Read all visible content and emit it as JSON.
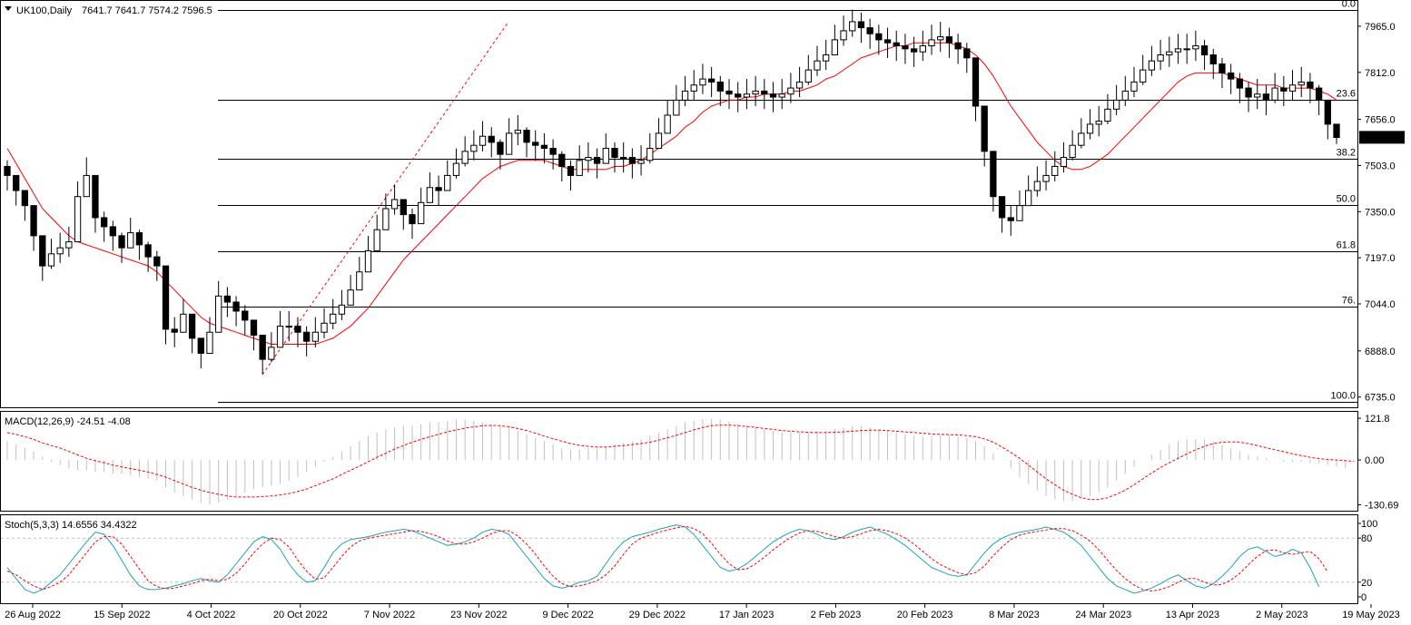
{
  "header": {
    "symbol": "UK100,Daily",
    "ohlc": "7641.7 7641.7 7574.2 7596.5"
  },
  "chart_data": {
    "type": "candlestick",
    "price_axis": {
      "ticks": [
        "7965.0",
        "7812.0",
        "7656.0",
        "7503.0",
        "7350.0",
        "7197.0",
        "7044.0",
        "6888.0",
        "6735.0"
      ],
      "last_price_label": "7596.5",
      "last_price": 7596.5,
      "range": [
        6710,
        8040
      ]
    },
    "date_axis": [
      "26 Aug 2022",
      "15 Sep 2022",
      "4 Oct 2022",
      "20 Oct 2022",
      "7 Nov 2022",
      "23 Nov 2022",
      "9 Dec 2022",
      "29 Dec 2022",
      "17 Jan 2023",
      "2 Feb 2023",
      "20 Feb 2023",
      "8 Mar 2023",
      "24 Mar 2023",
      "13 Apr 2023",
      "2 May 2023",
      "19 May 2023"
    ],
    "fibonacci": {
      "labels": [
        "0.0",
        "23.6",
        "38.2",
        "50.0",
        "61.8",
        "76.",
        "100.0"
      ],
      "levels": [
        8020,
        7720,
        7525,
        7372,
        7220,
        7035,
        6720
      ]
    },
    "ma_color": "#ff0000",
    "closes": [
      7470,
      7420,
      7370,
      7270,
      7170,
      7210,
      7230,
      7250,
      7400,
      7470,
      7330,
      7300,
      7270,
      7230,
      7280,
      7240,
      7200,
      7170,
      6960,
      6950,
      7010,
      6930,
      6880,
      6950,
      7070,
      7050,
      7020,
      6990,
      6940,
      6860,
      6900,
      6970,
      6970,
      6950,
      6920,
      6950,
      6980,
      7010,
      7040,
      7090,
      7150,
      7220,
      7290,
      7360,
      7390,
      7340,
      7310,
      7380,
      7430,
      7420,
      7470,
      7510,
      7550,
      7570,
      7600,
      7580,
      7540,
      7610,
      7620,
      7580,
      7570,
      7560,
      7540,
      7500,
      7470,
      7520,
      7530,
      7510,
      7560,
      7530,
      7530,
      7510,
      7520,
      7560,
      7610,
      7670,
      7720,
      7750,
      7770,
      7790,
      7780,
      7750,
      7740,
      7730,
      7740,
      7750,
      7740,
      7730,
      7740,
      7760,
      7780,
      7820,
      7850,
      7870,
      7920,
      7950,
      7980,
      7960,
      7940,
      7920,
      7910,
      7900,
      7890,
      7880,
      7900,
      7920,
      7930,
      7910,
      7890,
      7860,
      7700,
      7550,
      7400,
      7330,
      7320,
      7370,
      7420,
      7450,
      7470,
      7500,
      7530,
      7570,
      7610,
      7640,
      7650,
      7690,
      7720,
      7750,
      7780,
      7820,
      7850,
      7870,
      7880,
      7890,
      7890,
      7900,
      7870,
      7840,
      7810,
      7790,
      7760,
      7730,
      7740,
      7720,
      7760,
      7750,
      7770,
      7780,
      7760,
      7720,
      7640,
      7596
    ],
    "highs": [
      7520,
      7470,
      7420,
      7320,
      7220,
      7260,
      7280,
      7300,
      7450,
      7530,
      7380,
      7350,
      7320,
      7280,
      7330,
      7290,
      7250,
      7220,
      7010,
      7000,
      7060,
      6980,
      6930,
      7000,
      7120,
      7100,
      7070,
      7040,
      6990,
      6910,
      6950,
      7020,
      7020,
      7000,
      6970,
      7000,
      7030,
      7060,
      7090,
      7140,
      7200,
      7270,
      7340,
      7410,
      7440,
      7390,
      7360,
      7430,
      7480,
      7470,
      7520,
      7560,
      7600,
      7620,
      7650,
      7630,
      7590,
      7660,
      7670,
      7630,
      7620,
      7610,
      7590,
      7550,
      7520,
      7570,
      7580,
      7560,
      7610,
      7580,
      7580,
      7560,
      7570,
      7610,
      7660,
      7720,
      7770,
      7800,
      7820,
      7840,
      7830,
      7800,
      7790,
      7780,
      7790,
      7800,
      7790,
      7780,
      7790,
      7810,
      7830,
      7870,
      7900,
      7920,
      7970,
      8000,
      8020,
      8010,
      7990,
      7970,
      7960,
      7950,
      7940,
      7930,
      7950,
      7970,
      7980,
      7960,
      7940,
      7910,
      7750,
      7600,
      7450,
      7380,
      7370,
      7420,
      7470,
      7500,
      7520,
      7550,
      7580,
      7620,
      7660,
      7690,
      7700,
      7740,
      7770,
      7800,
      7830,
      7870,
      7900,
      7920,
      7930,
      7940,
      7940,
      7950,
      7920,
      7890,
      7860,
      7840,
      7810,
      7780,
      7790,
      7770,
      7810,
      7800,
      7820,
      7830,
      7810,
      7770,
      7690,
      7641
    ],
    "lows": [
      7420,
      7370,
      7320,
      7220,
      7120,
      7160,
      7180,
      7200,
      7350,
      7420,
      7280,
      7250,
      7220,
      7180,
      7230,
      7190,
      7150,
      7120,
      6910,
      6900,
      6960,
      6880,
      6830,
      6900,
      7020,
      7000,
      6970,
      6940,
      6890,
      6810,
      6850,
      6920,
      6920,
      6900,
      6870,
      6900,
      6930,
      6960,
      6990,
      7040,
      7100,
      7170,
      7240,
      7310,
      7340,
      7290,
      7260,
      7330,
      7380,
      7370,
      7420,
      7460,
      7500,
      7520,
      7550,
      7530,
      7490,
      7560,
      7570,
      7530,
      7520,
      7510,
      7490,
      7450,
      7420,
      7470,
      7480,
      7460,
      7510,
      7480,
      7480,
      7460,
      7470,
      7510,
      7560,
      7620,
      7670,
      7700,
      7720,
      7740,
      7730,
      7700,
      7690,
      7680,
      7690,
      7700,
      7690,
      7680,
      7690,
      7710,
      7730,
      7770,
      7800,
      7820,
      7870,
      7900,
      7930,
      7910,
      7890,
      7870,
      7860,
      7850,
      7840,
      7830,
      7850,
      7870,
      7880,
      7860,
      7840,
      7810,
      7650,
      7500,
      7350,
      7280,
      7270,
      7320,
      7370,
      7400,
      7420,
      7450,
      7480,
      7520,
      7560,
      7590,
      7600,
      7640,
      7670,
      7700,
      7730,
      7770,
      7800,
      7820,
      7830,
      7840,
      7840,
      7850,
      7820,
      7790,
      7760,
      7740,
      7710,
      7680,
      7690,
      7670,
      7710,
      7700,
      7720,
      7730,
      7710,
      7670,
      7590,
      7574
    ],
    "ma": [
      7560,
      7510,
      7460,
      7410,
      7360,
      7330,
      7300,
      7270,
      7250,
      7240,
      7230,
      7220,
      7210,
      7200,
      7190,
      7180,
      7170,
      7150,
      7120,
      7090,
      7060,
      7030,
      7000,
      6980,
      6970,
      6960,
      6950,
      6940,
      6930,
      6920,
      6910,
      6910,
      6910,
      6910,
      6910,
      6910,
      6920,
      6930,
      6950,
      6970,
      7000,
      7030,
      7070,
      7110,
      7150,
      7190,
      7220,
      7250,
      7280,
      7310,
      7340,
      7370,
      7400,
      7430,
      7460,
      7480,
      7500,
      7510,
      7520,
      7520,
      7520,
      7520,
      7510,
      7500,
      7490,
      7490,
      7490,
      7490,
      7490,
      7500,
      7500,
      7510,
      7520,
      7540,
      7560,
      7580,
      7600,
      7630,
      7650,
      7680,
      7700,
      7710,
      7720,
      7720,
      7730,
      7730,
      7740,
      7740,
      7740,
      7750,
      7750,
      7760,
      7770,
      7790,
      7800,
      7820,
      7840,
      7860,
      7870,
      7880,
      7890,
      7900,
      7900,
      7910,
      7910,
      7910,
      7910,
      7910,
      7900,
      7890,
      7870,
      7840,
      7800,
      7750,
      7700,
      7660,
      7620,
      7580,
      7550,
      7520,
      7500,
      7490,
      7490,
      7500,
      7520,
      7540,
      7570,
      7600,
      7630,
      7660,
      7690,
      7720,
      7750,
      7780,
      7800,
      7810,
      7810,
      7810,
      7810,
      7800,
      7790,
      7780,
      7770,
      7770,
      7770,
      7760,
      7760,
      7760,
      7760,
      7750,
      7740,
      7720
    ],
    "macd": {
      "label": "MACD(12,26,9) -24.51 -4.08",
      "ticks": [
        "121.8",
        "0.00",
        "-130.69"
      ],
      "range": [
        -140,
        130
      ],
      "hist": [
        55,
        45,
        35,
        25,
        10,
        -5,
        -15,
        -25,
        -30,
        -30,
        -35,
        -35,
        -40,
        -40,
        -45,
        -50,
        -55,
        -60,
        -80,
        -95,
        -105,
        -115,
        -125,
        -130,
        -125,
        -115,
        -105,
        -95,
        -85,
        -80,
        -75,
        -70,
        -60,
        -50,
        -35,
        -20,
        -5,
        10,
        25,
        40,
        55,
        70,
        80,
        90,
        95,
        100,
        100,
        105,
        110,
        110,
        115,
        118,
        118,
        115,
        110,
        105,
        100,
        95,
        85,
        75,
        65,
        55,
        45,
        35,
        30,
        30,
        35,
        35,
        40,
        45,
        50,
        55,
        60,
        70,
        80,
        90,
        100,
        110,
        115,
        120,
        121,
        118,
        112,
        105,
        100,
        95,
        90,
        85,
        80,
        80,
        80,
        80,
        85,
        85,
        90,
        95,
        100,
        100,
        95,
        90,
        85,
        80,
        75,
        70,
        68,
        70,
        72,
        72,
        70,
        65,
        55,
        40,
        20,
        0,
        -25,
        -50,
        -70,
        -90,
        -105,
        -115,
        -120,
        -120,
        -115,
        -105,
        -95,
        -80,
        -60,
        -40,
        -20,
        0,
        15,
        30,
        45,
        55,
        60,
        62,
        60,
        55,
        45,
        35,
        25,
        15,
        10,
        5,
        0,
        -5,
        -5,
        -5,
        -8,
        -10,
        -15,
        -20,
        -24
      ],
      "signal": [
        80,
        75,
        68,
        60,
        50,
        42,
        35,
        25,
        15,
        5,
        -2,
        -8,
        -15,
        -20,
        -25,
        -30,
        -35,
        -42,
        -50,
        -60,
        -70,
        -80,
        -88,
        -95,
        -100,
        -105,
        -108,
        -108,
        -108,
        -107,
        -105,
        -102,
        -98,
        -92,
        -85,
        -75,
        -65,
        -55,
        -42,
        -30,
        -18,
        -5,
        8,
        20,
        32,
        42,
        52,
        60,
        68,
        75,
        82,
        88,
        93,
        97,
        100,
        101,
        100,
        97,
        92,
        86,
        78,
        70,
        62,
        55,
        48,
        43,
        40,
        38,
        38,
        40,
        42,
        45,
        48,
        52,
        58,
        65,
        72,
        80,
        88,
        95,
        100,
        102,
        102,
        100,
        98,
        95,
        92,
        89,
        86,
        84,
        82,
        81,
        80,
        80,
        81,
        82,
        84,
        86,
        87,
        87,
        86,
        84,
        82,
        80,
        78,
        76,
        75,
        74,
        73,
        71,
        68,
        62,
        52,
        38,
        22,
        5,
        -15,
        -35,
        -55,
        -72,
        -88,
        -100,
        -110,
        -115,
        -115,
        -110,
        -100,
        -88,
        -72,
        -55,
        -38,
        -22,
        -8,
        5,
        18,
        30,
        40,
        48,
        52,
        53,
        52,
        48,
        42,
        36,
        30,
        24,
        18,
        13,
        8,
        4,
        2,
        0,
        -2,
        -4
      ],
      "signal_color": "#ff0000",
      "hist_color": "#c0c0c0"
    },
    "stoch": {
      "label": "Stoch(5,3,3) 14.6556 34.4322",
      "ticks": [
        "100",
        "80",
        "20",
        "0"
      ],
      "levels": [
        80,
        20
      ],
      "k": [
        40,
        25,
        10,
        5,
        10,
        20,
        30,
        45,
        60,
        75,
        88,
        85,
        70,
        50,
        30,
        15,
        10,
        10,
        12,
        15,
        18,
        22,
        25,
        22,
        20,
        30,
        45,
        60,
        75,
        82,
        78,
        65,
        45,
        30,
        20,
        22,
        40,
        60,
        72,
        78,
        80,
        82,
        85,
        88,
        90,
        92,
        90,
        85,
        80,
        75,
        70,
        72,
        75,
        80,
        88,
        92,
        90,
        85,
        70,
        55,
        40,
        25,
        15,
        12,
        15,
        20,
        22,
        28,
        45,
        62,
        75,
        82,
        85,
        88,
        92,
        95,
        98,
        95,
        85,
        70,
        55,
        40,
        35,
        38,
        45,
        55,
        65,
        75,
        82,
        88,
        92,
        90,
        85,
        80,
        78,
        82,
        88,
        92,
        95,
        90,
        85,
        78,
        70,
        60,
        50,
        40,
        35,
        30,
        28,
        30,
        45,
        60,
        72,
        80,
        85,
        88,
        90,
        92,
        95,
        92,
        88,
        80,
        70,
        55,
        40,
        25,
        15,
        10,
        5,
        8,
        12,
        18,
        25,
        30,
        22,
        15,
        12,
        18,
        28,
        40,
        55,
        65,
        68,
        62,
        55,
        58,
        65,
        60,
        40,
        14
      ],
      "d": [
        35,
        30,
        22,
        15,
        10,
        14,
        20,
        30,
        45,
        60,
        75,
        82,
        82,
        72,
        55,
        38,
        22,
        14,
        11,
        12,
        15,
        18,
        22,
        24,
        22,
        24,
        32,
        45,
        60,
        72,
        80,
        78,
        68,
        50,
        35,
        24,
        26,
        40,
        55,
        68,
        76,
        80,
        82,
        84,
        86,
        88,
        90,
        89,
        86,
        82,
        76,
        72,
        72,
        75,
        80,
        86,
        90,
        90,
        83,
        72,
        58,
        42,
        28,
        18,
        14,
        15,
        18,
        22,
        30,
        42,
        58,
        72,
        80,
        84,
        88,
        91,
        94,
        96,
        93,
        86,
        73,
        58,
        45,
        37,
        38,
        45,
        54,
        64,
        73,
        81,
        87,
        90,
        89,
        86,
        82,
        80,
        82,
        86,
        90,
        92,
        90,
        86,
        80,
        72,
        62,
        52,
        44,
        38,
        33,
        30,
        33,
        42,
        56,
        68,
        78,
        84,
        87,
        89,
        91,
        93,
        93,
        90,
        84,
        76,
        64,
        50,
        36,
        25,
        16,
        10,
        8,
        10,
        14,
        20,
        25,
        25,
        20,
        16,
        17,
        23,
        32,
        44,
        55,
        63,
        64,
        60,
        58,
        60,
        62,
        52,
        34
      ],
      "k_color": "#1fa0b8",
      "d_color": "#ff0000"
    }
  }
}
